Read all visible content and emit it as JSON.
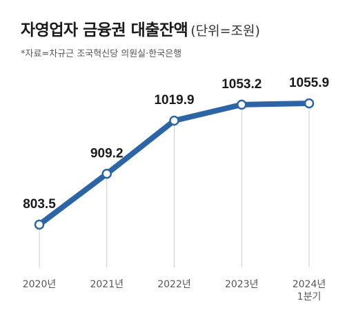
{
  "header": {
    "title": "자영업자 금융권 대출잔액",
    "unit": "(단위=조원)",
    "source": "*자료=차규근 조국혁신당 의원실·한국은행"
  },
  "colors": {
    "line": "#2c65a6",
    "marker_fill": "#ffffff",
    "drop_line": "#cccccc",
    "text": "#1a1a1a",
    "axis_text": "#555555"
  },
  "chart_data": {
    "type": "line",
    "title": "자영업자 금융권 대출잔액",
    "subtitle": "(단위=조원)",
    "categories": [
      [
        "2020년"
      ],
      [
        "2021년"
      ],
      [
        "2022년"
      ],
      [
        "2023년"
      ],
      [
        "2024년",
        "1분기"
      ]
    ],
    "series": [
      {
        "values": [
          803.5,
          909.2,
          1019.9,
          1053.2,
          1055.9
        ],
        "labels": [
          "803.5",
          "909.2",
          "1019.9",
          "1053.2",
          "1055.9"
        ]
      }
    ],
    "ylim": [
      780,
      1065
    ],
    "grid": false,
    "legend": "none"
  }
}
